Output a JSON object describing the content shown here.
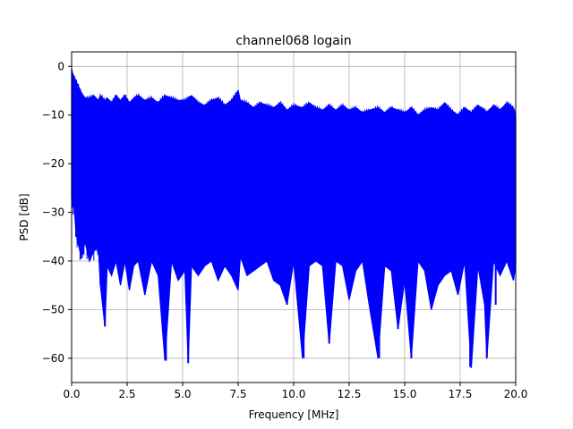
{
  "chart_data": {
    "type": "line",
    "title": "channel068 logain",
    "xlabel": "Frequency [MHz]",
    "ylabel": "PSD [dB]",
    "xlim": [
      0.0,
      20.0
    ],
    "ylim": [
      -65,
      3
    ],
    "xticks": [
      0.0,
      2.5,
      5.0,
      7.5,
      10.0,
      12.5,
      15.0,
      17.5,
      20.0
    ],
    "xtick_labels": [
      "0.0",
      "2.5",
      "5.0",
      "7.5",
      "10.0",
      "12.5",
      "15.0",
      "17.5",
      "20.0"
    ],
    "yticks": [
      0,
      -10,
      -20,
      -30,
      -40,
      -50,
      -60
    ],
    "ytick_labels": [
      "0",
      "−10",
      "−20",
      "−30",
      "−40",
      "−50",
      "−60"
    ],
    "grid": true,
    "series": [
      {
        "color": "#0000ff",
        "x": [
          0.0,
          0.05,
          0.1,
          0.2,
          0.3,
          0.45,
          0.6,
          0.8,
          1.0,
          1.2,
          1.3,
          1.5,
          1.6,
          1.8,
          2.0,
          2.2,
          2.4,
          2.6,
          2.8,
          3.0,
          3.3,
          3.6,
          3.9,
          4.2,
          4.5,
          4.8,
          5.1,
          5.25,
          5.4,
          5.7,
          6.0,
          6.3,
          6.6,
          6.9,
          7.2,
          7.5,
          7.6,
          7.9,
          8.2,
          8.5,
          8.8,
          9.1,
          9.4,
          9.7,
          10.0,
          10.4,
          10.7,
          11.0,
          11.3,
          11.6,
          11.9,
          12.2,
          12.5,
          12.8,
          13.1,
          13.4,
          13.8,
          14.1,
          14.4,
          14.7,
          15.0,
          15.3,
          15.6,
          15.9,
          16.2,
          16.5,
          16.8,
          17.1,
          17.4,
          17.7,
          18.0,
          18.3,
          18.6,
          18.7,
          19.0,
          19.3,
          19.6,
          19.9,
          20.0
        ],
        "upper": [
          -0.5,
          -1.5,
          -2.0,
          -3.0,
          -4.0,
          -5.5,
          -6.5,
          -6.5,
          -6.0,
          -7.0,
          -6.0,
          -7.0,
          -6.5,
          -7.5,
          -6.0,
          -7.0,
          -6.0,
          -7.5,
          -6.5,
          -6.0,
          -7.0,
          -6.5,
          -7.5,
          -6.0,
          -6.5,
          -7.0,
          -7.0,
          -6.5,
          -6.0,
          -7.5,
          -8.0,
          -7.0,
          -6.5,
          -8.0,
          -7.0,
          -5.0,
          -7.0,
          -7.5,
          -8.5,
          -7.5,
          -8.0,
          -8.5,
          -7.5,
          -9.0,
          -8.0,
          -8.5,
          -7.5,
          -8.5,
          -9.0,
          -8.0,
          -9.0,
          -8.0,
          -9.0,
          -8.5,
          -9.5,
          -9.0,
          -8.5,
          -9.5,
          -8.5,
          -9.0,
          -9.5,
          -8.5,
          -10.0,
          -9.0,
          -8.5,
          -9.0,
          -7.5,
          -9.0,
          -10.0,
          -8.5,
          -9.5,
          -8.0,
          -9.0,
          -9.5,
          -8.0,
          -9.0,
          -7.5,
          -8.5,
          -10.0
        ],
        "lower": [
          -27.0,
          -29.0,
          -28.0,
          -34.5,
          -36.5,
          -39.5,
          -36.0,
          -40.0,
          -38.0,
          -37.0,
          -45.0,
          -53.5,
          -41.0,
          -43.0,
          -40.0,
          -45.0,
          -40.0,
          -46.0,
          -41.0,
          -40.0,
          -47.0,
          -40.0,
          -43.0,
          -60.5,
          -40.0,
          -44.0,
          -42.0,
          -61.0,
          -41.0,
          -43.0,
          -41.0,
          -40.0,
          -44.0,
          -41.0,
          -43.0,
          -46.0,
          -39.0,
          -43.0,
          -42.0,
          -41.0,
          -40.0,
          -44.0,
          -45.0,
          -49.0,
          -40.0,
          -60.0,
          -41.0,
          -40.0,
          -41.0,
          -57.0,
          -40.0,
          -41.0,
          -48.0,
          -42.0,
          -40.0,
          -49.0,
          -60.0,
          -41.0,
          -42.0,
          -54.0,
          -44.0,
          -60.0,
          -40.0,
          -42.0,
          -50.0,
          -45.0,
          -43.0,
          -42.0,
          -47.0,
          -40.0,
          -62.0,
          -41.0,
          -49.0,
          -60.0,
          -40.0,
          -43.0,
          -40.0,
          -44.0,
          -41.0
        ],
        "dips": [
          [
            0.2,
            -35.0
          ],
          [
            0.45,
            -39.5
          ],
          [
            1.3,
            -45.0
          ],
          [
            1.5,
            -53.5
          ],
          [
            4.25,
            -60.5
          ],
          [
            5.25,
            -61.0
          ],
          [
            9.7,
            -49.0
          ],
          [
            10.45,
            -60.0
          ],
          [
            11.6,
            -57.0
          ],
          [
            13.85,
            -60.0
          ],
          [
            14.7,
            -54.0
          ],
          [
            15.3,
            -60.0
          ],
          [
            16.2,
            -50.0
          ],
          [
            17.95,
            -61.8
          ],
          [
            18.7,
            -60.0
          ],
          [
            19.1,
            -49.0
          ]
        ]
      }
    ]
  }
}
